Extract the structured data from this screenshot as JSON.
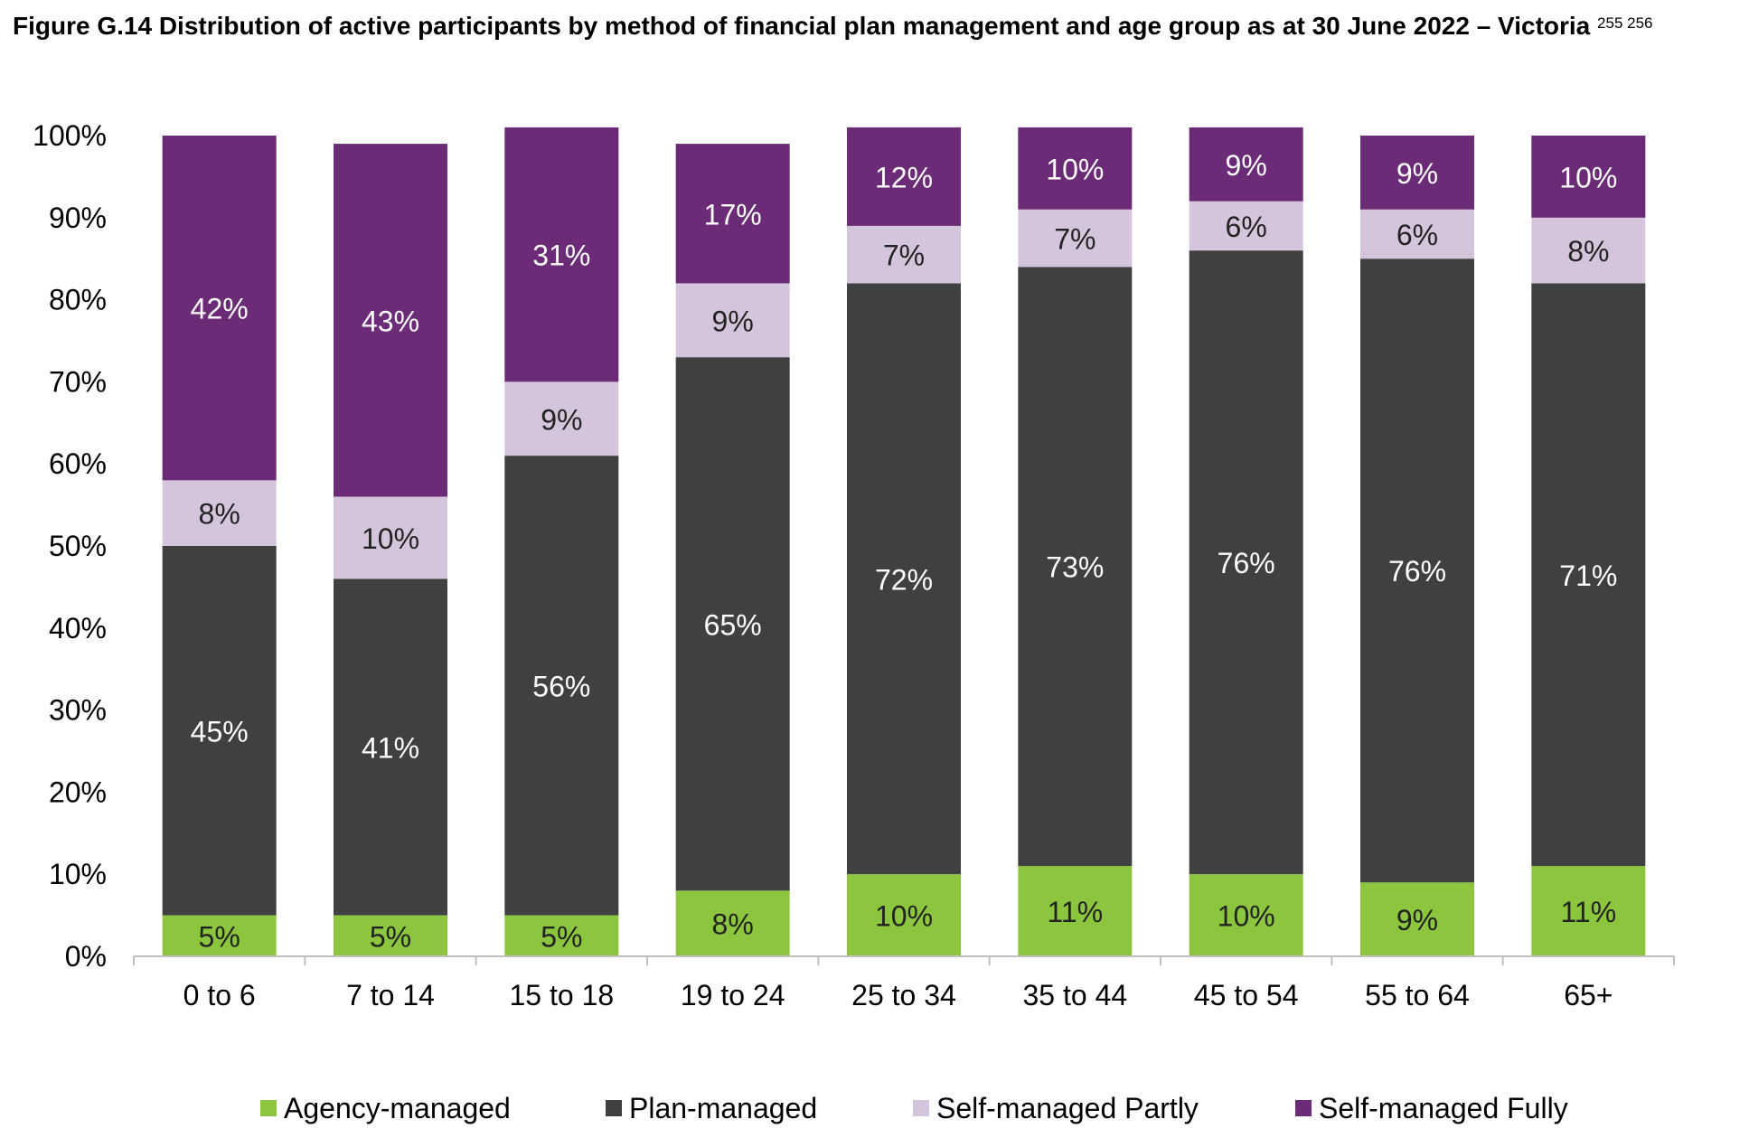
{
  "title": "Figure G.14 Distribution of active participants by method of financial plan management and age group as at 30 June 2022 – Victoria",
  "title_footnotes": "255 256",
  "chart_data": {
    "type": "bar",
    "stacked": true,
    "orientation": "vertical",
    "categories": [
      "0 to 6",
      "7 to 14",
      "15 to 18",
      "19 to 24",
      "25 to 34",
      "35 to 44",
      "45 to 54",
      "55 to 64",
      "65+"
    ],
    "series": [
      {
        "name": "Agency-managed",
        "color": "#8cc63f",
        "values": [
          5,
          5,
          5,
          8,
          10,
          11,
          10,
          9,
          11
        ],
        "labels": [
          "5%",
          "5%",
          "5%",
          "8%",
          "10%",
          "11%",
          "10%",
          "9%",
          "11%"
        ]
      },
      {
        "name": "Plan-managed",
        "color": "#404041",
        "values": [
          45,
          41,
          56,
          65,
          72,
          73,
          76,
          76,
          71
        ],
        "labels": [
          "45%",
          "41%",
          "56%",
          "65%",
          "72%",
          "73%",
          "76%",
          "76%",
          "71%"
        ]
      },
      {
        "name": "Self-managed Partly",
        "color": "#d5c5dc",
        "values": [
          8,
          10,
          9,
          9,
          7,
          7,
          6,
          6,
          8
        ],
        "labels": [
          "8%",
          "10%",
          "9%",
          "9%",
          "7%",
          "7%",
          "6%",
          "6%",
          "8%"
        ]
      },
      {
        "name": "Self-managed Fully",
        "color": "#6b2b76",
        "values": [
          42,
          43,
          31,
          17,
          12,
          10,
          9,
          9,
          10
        ],
        "labels": [
          "42%",
          "43%",
          "31%",
          "17%",
          "12%",
          "10%",
          "9%",
          "9%",
          "10%"
        ]
      }
    ],
    "y_ticks": [
      "0%",
      "10%",
      "20%",
      "30%",
      "40%",
      "50%",
      "60%",
      "70%",
      "80%",
      "90%",
      "100%"
    ],
    "ylim": [
      0,
      100
    ],
    "xlabel": "",
    "ylabel": "",
    "grid": false,
    "legend_position": "bottom"
  }
}
